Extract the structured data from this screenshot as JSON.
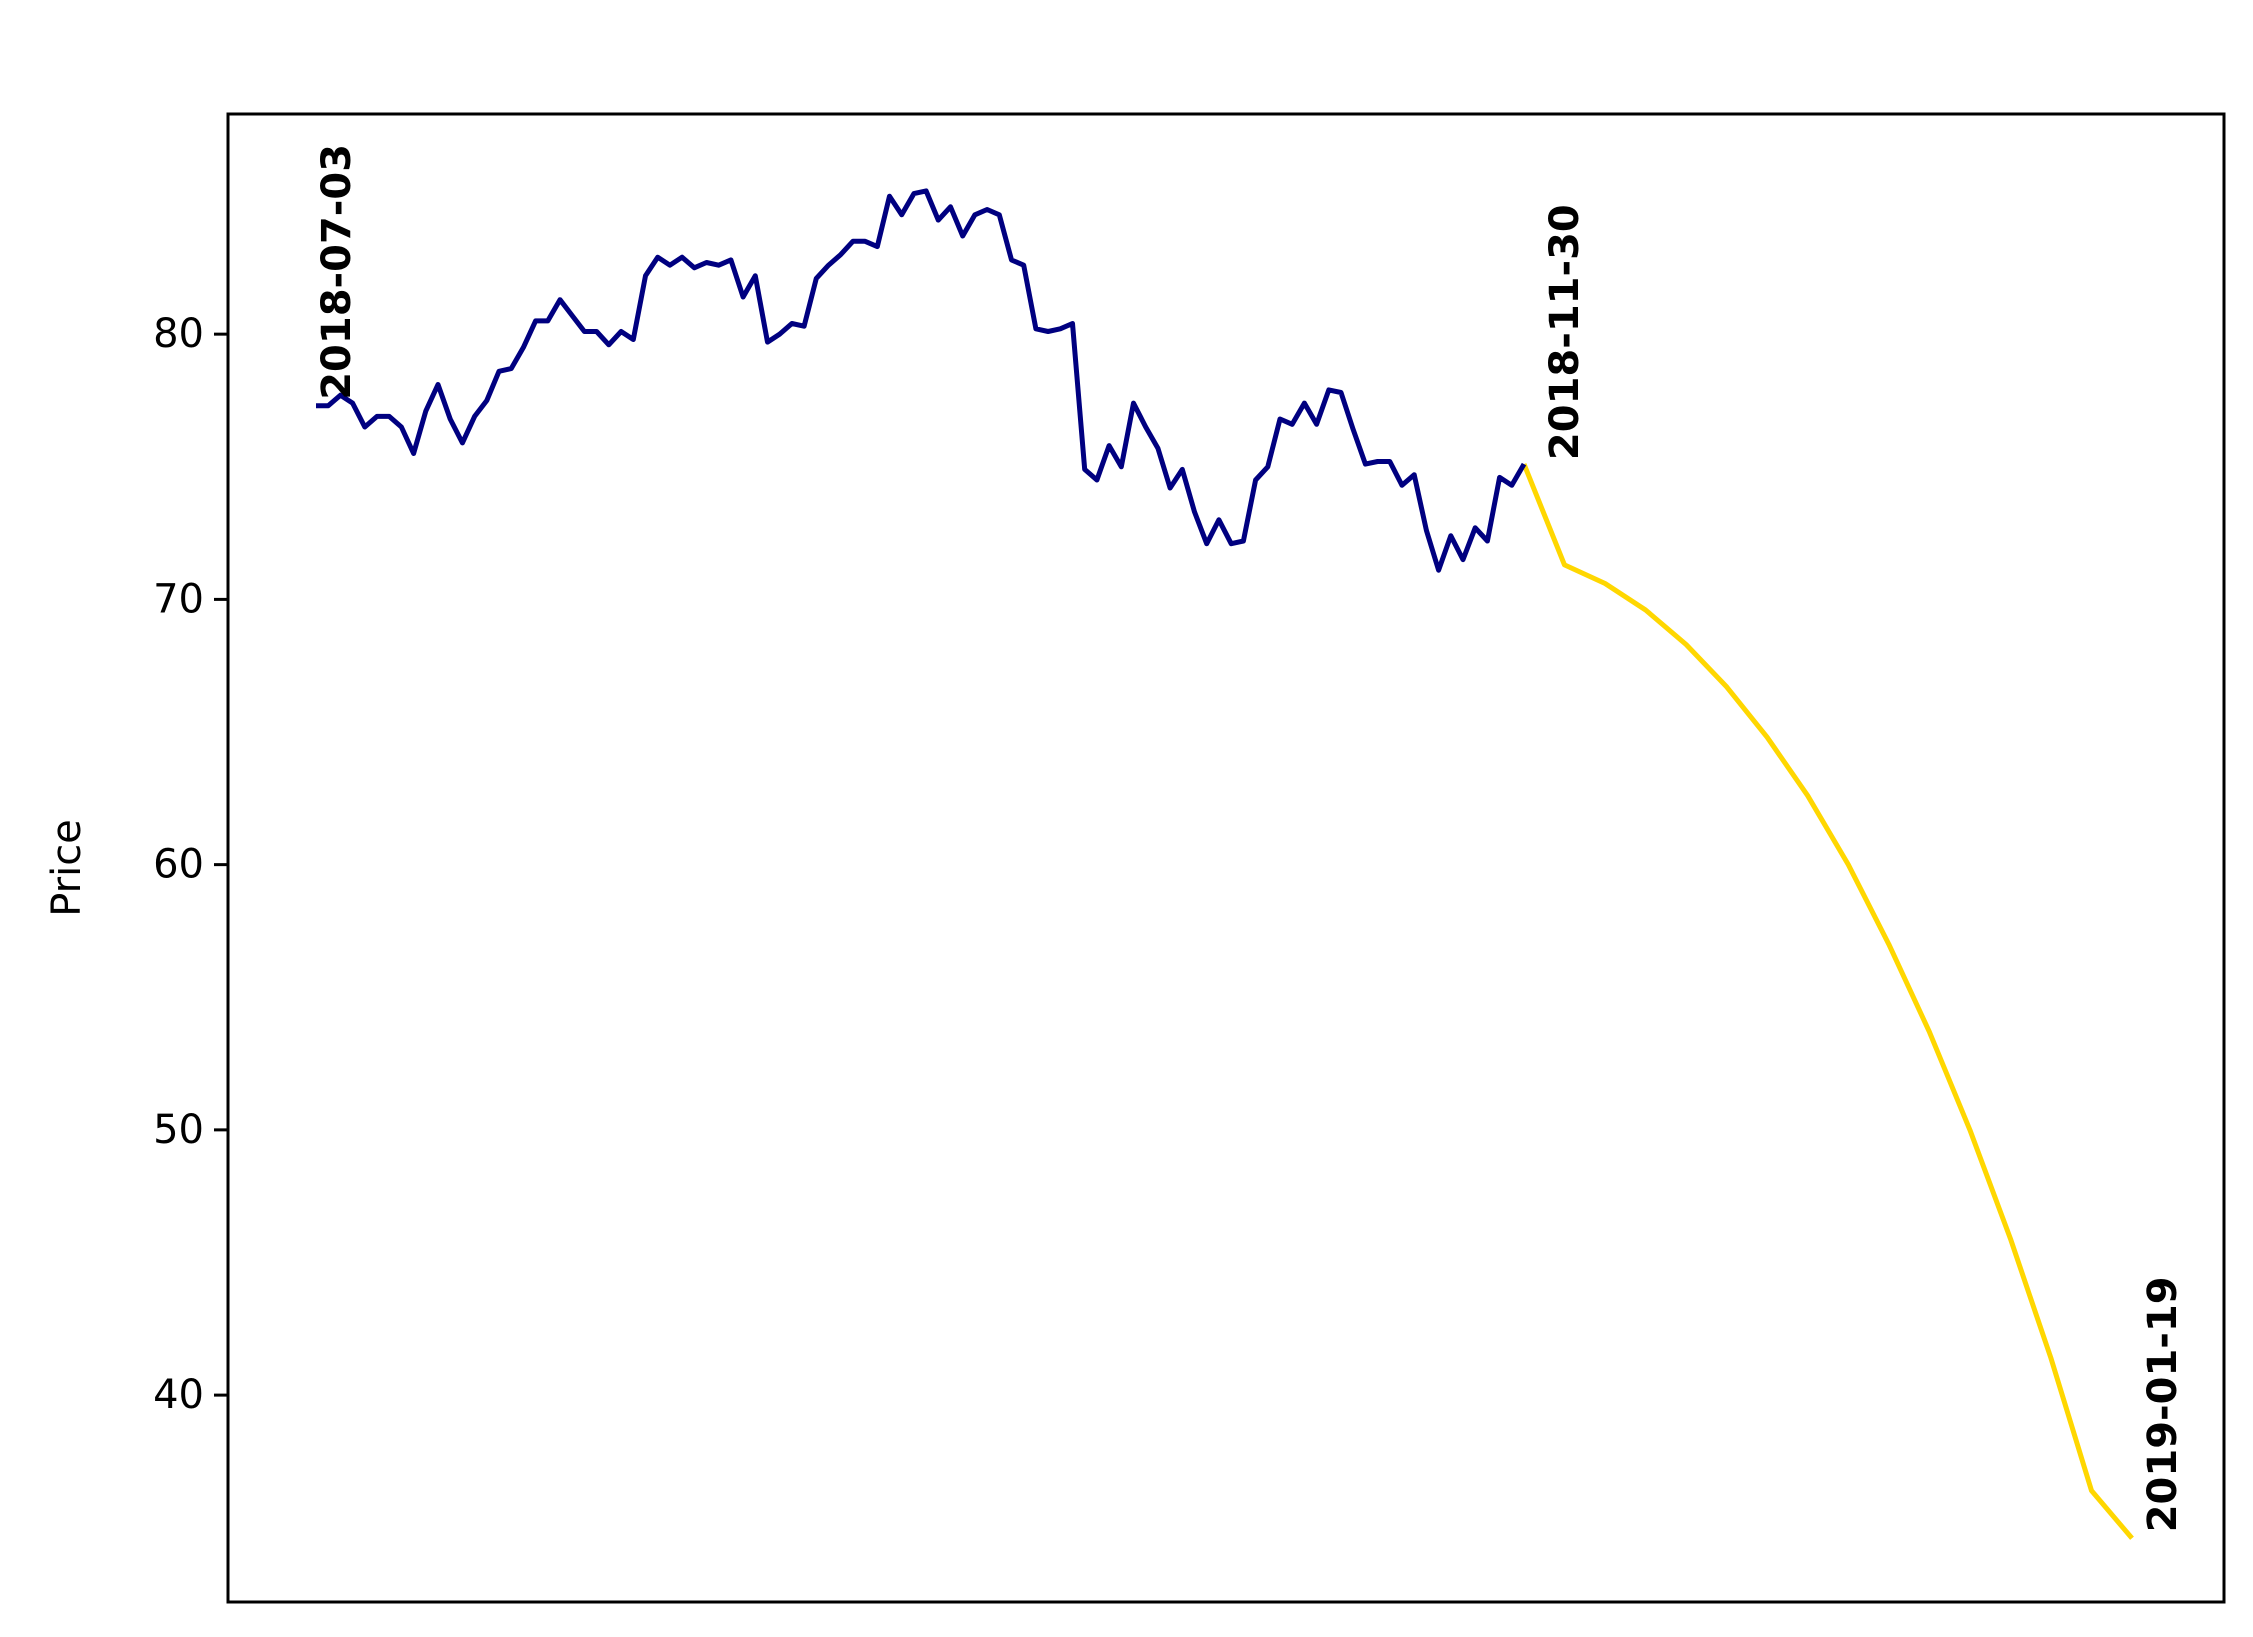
{
  "chart_data": {
    "type": "line",
    "title": "",
    "xlabel": "",
    "ylabel": "Price",
    "ylim": [
      32.2,
      88.3
    ],
    "yticks": [
      40,
      50,
      60,
      70,
      80
    ],
    "x_ticks_shown": false,
    "grid": false,
    "legend": "none",
    "colors": {
      "history": "#000080",
      "forecast": "#FFD700"
    },
    "series": [
      {
        "values": [
          77.3,
          77.3,
          77.7,
          77.4,
          76.5,
          76.9,
          76.9,
          76.5,
          75.5,
          77.1,
          78.1,
          76.8,
          75.9,
          76.9,
          77.5,
          78.6,
          78.7,
          79.5,
          80.5,
          80.5,
          81.3,
          80.7,
          80.1,
          80.1,
          79.6,
          80.1,
          79.8,
          82.2,
          82.9,
          82.6,
          82.9,
          82.5,
          82.7,
          82.6,
          82.8,
          81.4,
          82.2,
          79.7,
          80.0,
          80.4,
          80.3,
          82.1,
          82.6,
          83.0,
          83.5,
          83.5,
          83.3,
          85.2,
          84.5,
          85.3,
          85.4,
          84.3,
          84.8,
          83.7,
          84.5,
          84.7,
          84.5,
          82.8,
          82.6,
          80.2,
          80.1,
          80.2,
          80.4,
          74.9,
          74.5,
          75.8,
          75.0,
          77.4,
          76.5,
          75.7,
          74.2,
          74.9,
          73.3,
          72.1,
          73.0,
          72.1,
          72.2,
          74.5,
          75.0,
          76.8,
          76.6,
          77.4,
          76.6,
          77.9,
          77.8,
          76.4,
          75.1,
          75.2,
          75.2,
          74.3,
          74.7,
          72.6,
          71.1,
          72.4,
          71.5,
          72.7,
          72.2,
          74.6,
          74.3,
          75.1
        ]
      },
      {
        "values": [
          75.1,
          71.3,
          70.6,
          69.6,
          68.3,
          66.7,
          64.8,
          62.6,
          60.0,
          57.0,
          53.7,
          50.0,
          45.9,
          41.4,
          36.4,
          34.6
        ]
      }
    ],
    "annotations": [
      {
        "text": "2018-07-03"
      },
      {
        "text": "2018-11-30"
      },
      {
        "text": "2019-01-19"
      }
    ]
  }
}
